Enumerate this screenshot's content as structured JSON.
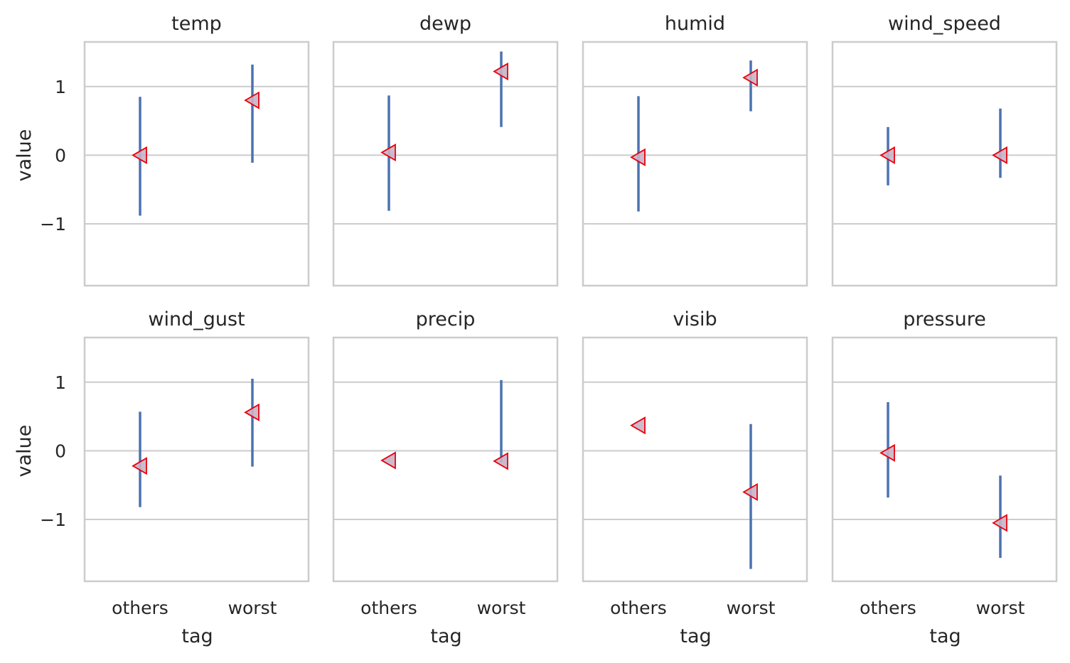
{
  "chart_data": {
    "type": "pointplot",
    "facet_layout": {
      "rows": 2,
      "cols": 4
    },
    "xlabel": "tag",
    "ylabel": "value",
    "categories": [
      "others",
      "worst"
    ],
    "ylim": [
      -1.9,
      1.65
    ],
    "yticks": [
      -1,
      0,
      1
    ],
    "ytick_labels": [
      "−1",
      "0",
      "1"
    ],
    "grid": true,
    "colors": {
      "error_bar": "#4c72b0",
      "marker_fill": "#c8b4c8",
      "marker_edge": "#e8000b",
      "grid": "#cccccc",
      "spine": "#cccccc",
      "text": "#262626"
    },
    "marker": "triangle-left",
    "panels": [
      {
        "title": "temp",
        "points": [
          {
            "x": "others",
            "y": 0.0,
            "ci": [
              -0.88,
              0.85
            ]
          },
          {
            "x": "worst",
            "y": 0.8,
            "ci": [
              -0.11,
              1.32
            ]
          }
        ]
      },
      {
        "title": "dewp",
        "points": [
          {
            "x": "others",
            "y": 0.04,
            "ci": [
              -0.81,
              0.87
            ]
          },
          {
            "x": "worst",
            "y": 1.22,
            "ci": [
              0.41,
              1.51
            ]
          }
        ]
      },
      {
        "title": "humid",
        "points": [
          {
            "x": "others",
            "y": -0.03,
            "ci": [
              -0.82,
              0.86
            ]
          },
          {
            "x": "worst",
            "y": 1.13,
            "ci": [
              0.64,
              1.38
            ]
          }
        ]
      },
      {
        "title": "wind_speed",
        "points": [
          {
            "x": "others",
            "y": 0.0,
            "ci": [
              -0.44,
              0.41
            ]
          },
          {
            "x": "worst",
            "y": 0.0,
            "ci": [
              -0.33,
              0.68
            ]
          }
        ]
      },
      {
        "title": "wind_gust",
        "points": [
          {
            "x": "others",
            "y": -0.22,
            "ci": [
              -0.82,
              0.57
            ]
          },
          {
            "x": "worst",
            "y": 0.56,
            "ci": [
              -0.23,
              1.05
            ]
          }
        ]
      },
      {
        "title": "precip",
        "points": [
          {
            "x": "others",
            "y": -0.14,
            "ci": null
          },
          {
            "x": "worst",
            "y": -0.15,
            "ci": [
              -0.17,
              1.03
            ]
          }
        ]
      },
      {
        "title": "visib",
        "points": [
          {
            "x": "others",
            "y": 0.37,
            "ci": null
          },
          {
            "x": "worst",
            "y": -0.6,
            "ci": [
              -1.72,
              0.39
            ]
          }
        ]
      },
      {
        "title": "pressure",
        "points": [
          {
            "x": "others",
            "y": -0.03,
            "ci": [
              -0.68,
              0.71
            ]
          },
          {
            "x": "worst",
            "y": -1.05,
            "ci": [
              -1.56,
              -0.36
            ]
          }
        ]
      }
    ]
  }
}
